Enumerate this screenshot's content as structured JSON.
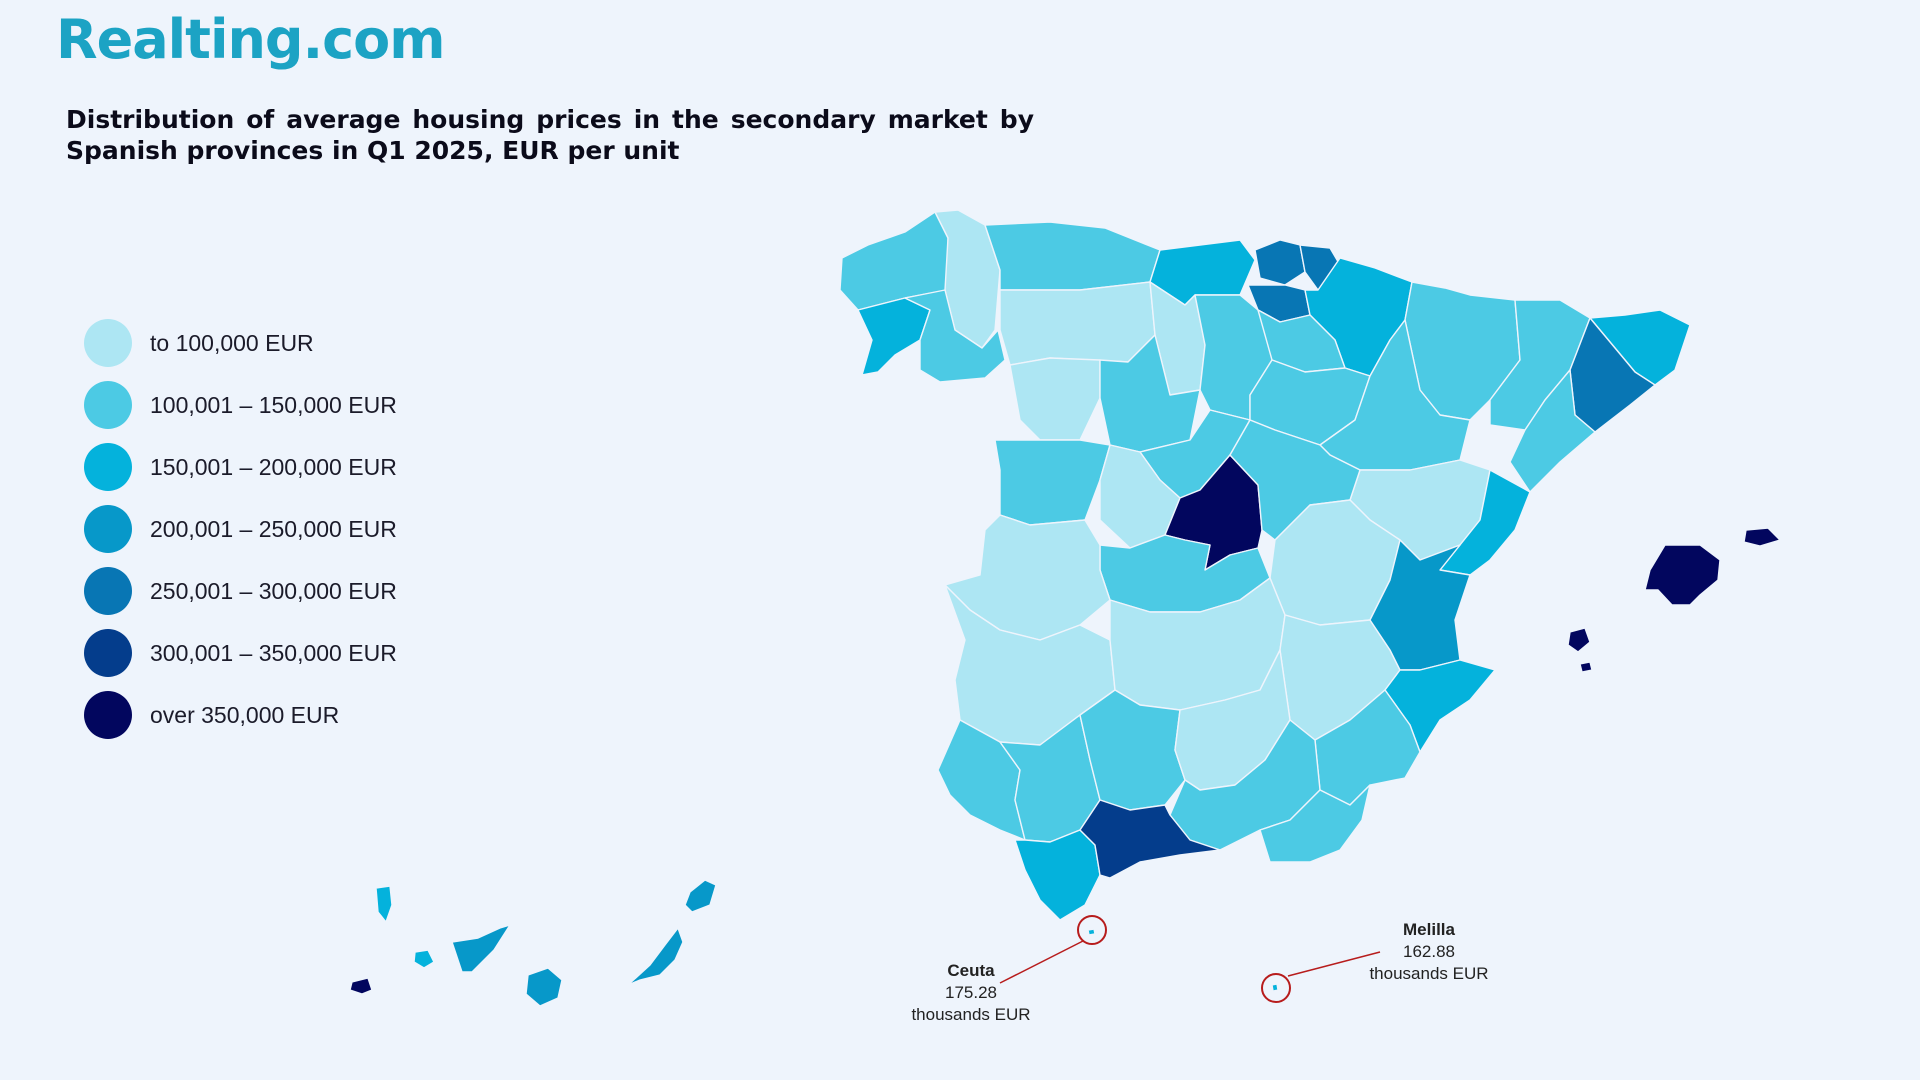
{
  "brand": {
    "logo_text": "Realting.com"
  },
  "title": "Distribution of average housing prices in the secondary market by Spanish provinces in Q1 2025, EUR per unit",
  "legend": [
    {
      "label": "to 100,000 EUR",
      "color": "#ade6f3"
    },
    {
      "label": "100,001 – 150,000 EUR",
      "color": "#4ccae4"
    },
    {
      "label": "150,001 – 200,000 EUR",
      "color": "#04b2dc"
    },
    {
      "label": "200,001 – 250,000 EUR",
      "color": "#0798c9"
    },
    {
      "label": "250,001 – 300,000 EUR",
      "color": "#0876b4"
    },
    {
      "label": "300,001 – 350,000 EUR",
      "color": "#043d8c"
    },
    {
      "label": "over 350,000 EUR",
      "color": "#02065e"
    }
  ],
  "callouts": {
    "ceuta": {
      "name": "Ceuta",
      "value": "175.28",
      "unit": "thousands EUR"
    },
    "melilla": {
      "name": "Melilla",
      "value": "162.88",
      "unit": "thousands EUR"
    }
  },
  "highlight_color": "#b71c1c"
}
